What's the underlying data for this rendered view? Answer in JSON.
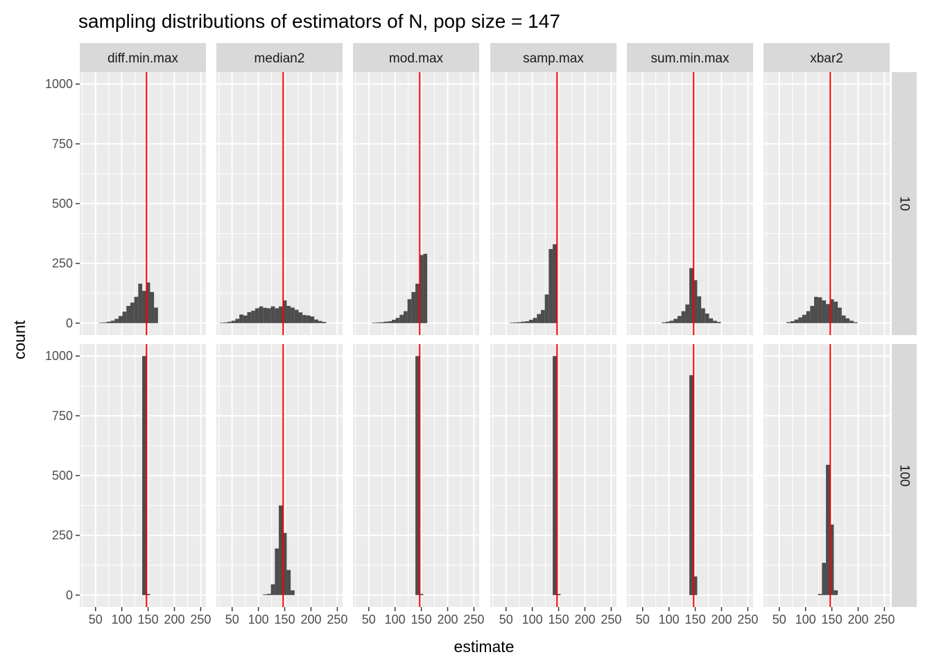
{
  "chart_data": {
    "type": "bar",
    "title": "sampling distributions of estimators of N, pop size = 147",
    "xlabel": "estimate",
    "ylabel": "count",
    "xlim": [
      20,
      260
    ],
    "ylim": [
      -50,
      1050
    ],
    "x_ticks": [
      50,
      100,
      150,
      200,
      250
    ],
    "x_tick_labels": [
      "50",
      "100",
      "150",
      "200",
      "250"
    ],
    "y_ticks": [
      0,
      250,
      500,
      750,
      1000
    ],
    "y_tick_labels": [
      "0",
      "250",
      "500",
      "750",
      "1000"
    ],
    "grid": true,
    "bin_width": 7.5,
    "reference_line": {
      "value": 147,
      "color": "#ff0000"
    },
    "bar_color": "#4d4d4d",
    "columns": [
      "diff.min.max",
      "median2",
      "mod.max",
      "samp.max",
      "sum.min.max",
      "xbar2"
    ],
    "rows": [
      "10",
      "100"
    ],
    "panels": [
      {
        "estimator": "diff.min.max",
        "sample_size": "10",
        "bins": [
          [
            60,
            2
          ],
          [
            67.5,
            3
          ],
          [
            75,
            6
          ],
          [
            82.5,
            10
          ],
          [
            90,
            18
          ],
          [
            97.5,
            30
          ],
          [
            105,
            48
          ],
          [
            112.5,
            72
          ],
          [
            120,
            86
          ],
          [
            127.5,
            110
          ],
          [
            135,
            165
          ],
          [
            142.5,
            135
          ],
          [
            150,
            170
          ],
          [
            157.5,
            130
          ],
          [
            165,
            65
          ]
        ]
      },
      {
        "estimator": "median2",
        "sample_size": "10",
        "bins": [
          [
            30,
            2
          ],
          [
            37.5,
            3
          ],
          [
            45,
            6
          ],
          [
            52.5,
            10
          ],
          [
            60,
            18
          ],
          [
            67.5,
            36
          ],
          [
            75,
            32
          ],
          [
            82.5,
            46
          ],
          [
            90,
            52
          ],
          [
            97.5,
            62
          ],
          [
            105,
            70
          ],
          [
            112.5,
            64
          ],
          [
            120,
            62
          ],
          [
            127.5,
            70
          ],
          [
            135,
            62
          ],
          [
            142.5,
            70
          ],
          [
            150,
            95
          ],
          [
            157.5,
            72
          ],
          [
            165,
            65
          ],
          [
            172.5,
            56
          ],
          [
            180,
            45
          ],
          [
            187.5,
            34
          ],
          [
            195,
            32
          ],
          [
            202.5,
            28
          ],
          [
            210,
            15
          ],
          [
            217.5,
            9
          ],
          [
            225,
            5
          ]
        ]
      },
      {
        "estimator": "mod.max",
        "sample_size": "10",
        "bins": [
          [
            60,
            2
          ],
          [
            67.5,
            3
          ],
          [
            75,
            4
          ],
          [
            82.5,
            6
          ],
          [
            90,
            8
          ],
          [
            97.5,
            14
          ],
          [
            105,
            22
          ],
          [
            112.5,
            35
          ],
          [
            120,
            50
          ],
          [
            127.5,
            100
          ],
          [
            135,
            130
          ],
          [
            142.5,
            165
          ],
          [
            150,
            285
          ],
          [
            157.5,
            290
          ]
        ]
      },
      {
        "estimator": "samp.max",
        "sample_size": "10",
        "bins": [
          [
            60,
            2
          ],
          [
            67.5,
            3
          ],
          [
            75,
            4
          ],
          [
            82.5,
            6
          ],
          [
            90,
            8
          ],
          [
            97.5,
            14
          ],
          [
            105,
            22
          ],
          [
            112.5,
            38
          ],
          [
            120,
            55
          ],
          [
            127.5,
            120
          ],
          [
            135,
            310
          ],
          [
            142.5,
            330
          ]
        ]
      },
      {
        "estimator": "sum.min.max",
        "sample_size": "10",
        "bins": [
          [
            90,
            3
          ],
          [
            97.5,
            6
          ],
          [
            105,
            10
          ],
          [
            112.5,
            18
          ],
          [
            120,
            30
          ],
          [
            127.5,
            50
          ],
          [
            135,
            78
          ],
          [
            142.5,
            230
          ],
          [
            150,
            180
          ],
          [
            157.5,
            112
          ],
          [
            165,
            62
          ],
          [
            172.5,
            40
          ],
          [
            180,
            20
          ],
          [
            187.5,
            10
          ],
          [
            195,
            5
          ]
        ]
      },
      {
        "estimator": "xbar2",
        "sample_size": "10",
        "bins": [
          [
            67.5,
            4
          ],
          [
            75,
            8
          ],
          [
            82.5,
            15
          ],
          [
            90,
            24
          ],
          [
            97.5,
            35
          ],
          [
            105,
            50
          ],
          [
            112.5,
            72
          ],
          [
            120,
            110
          ],
          [
            127.5,
            108
          ],
          [
            135,
            95
          ],
          [
            142.5,
            80
          ],
          [
            150,
            100
          ],
          [
            157.5,
            90
          ],
          [
            165,
            65
          ],
          [
            172.5,
            32
          ],
          [
            180,
            20
          ],
          [
            187.5,
            10
          ],
          [
            195,
            4
          ]
        ]
      },
      {
        "estimator": "diff.min.max",
        "sample_size": "100",
        "bins": [
          [
            142.5,
            1000
          ],
          [
            150,
            5
          ]
        ]
      },
      {
        "estimator": "median2",
        "sample_size": "100",
        "bins": [
          [
            112.5,
            3
          ],
          [
            120,
            5
          ],
          [
            127.5,
            45
          ],
          [
            135,
            195
          ],
          [
            142.5,
            375
          ],
          [
            150,
            260
          ],
          [
            157.5,
            105
          ],
          [
            165,
            20
          ]
        ]
      },
      {
        "estimator": "mod.max",
        "sample_size": "100",
        "bins": [
          [
            142.5,
            1000
          ],
          [
            150,
            5
          ]
        ]
      },
      {
        "estimator": "samp.max",
        "sample_size": "100",
        "bins": [
          [
            142.5,
            1000
          ],
          [
            150,
            5
          ]
        ]
      },
      {
        "estimator": "sum.min.max",
        "sample_size": "100",
        "bins": [
          [
            142.5,
            920
          ],
          [
            150,
            78
          ]
        ]
      },
      {
        "estimator": "xbar2",
        "sample_size": "100",
        "bins": [
          [
            127.5,
            5
          ],
          [
            135,
            135
          ],
          [
            142.5,
            545
          ],
          [
            150,
            295
          ],
          [
            157.5,
            20
          ]
        ]
      }
    ]
  }
}
